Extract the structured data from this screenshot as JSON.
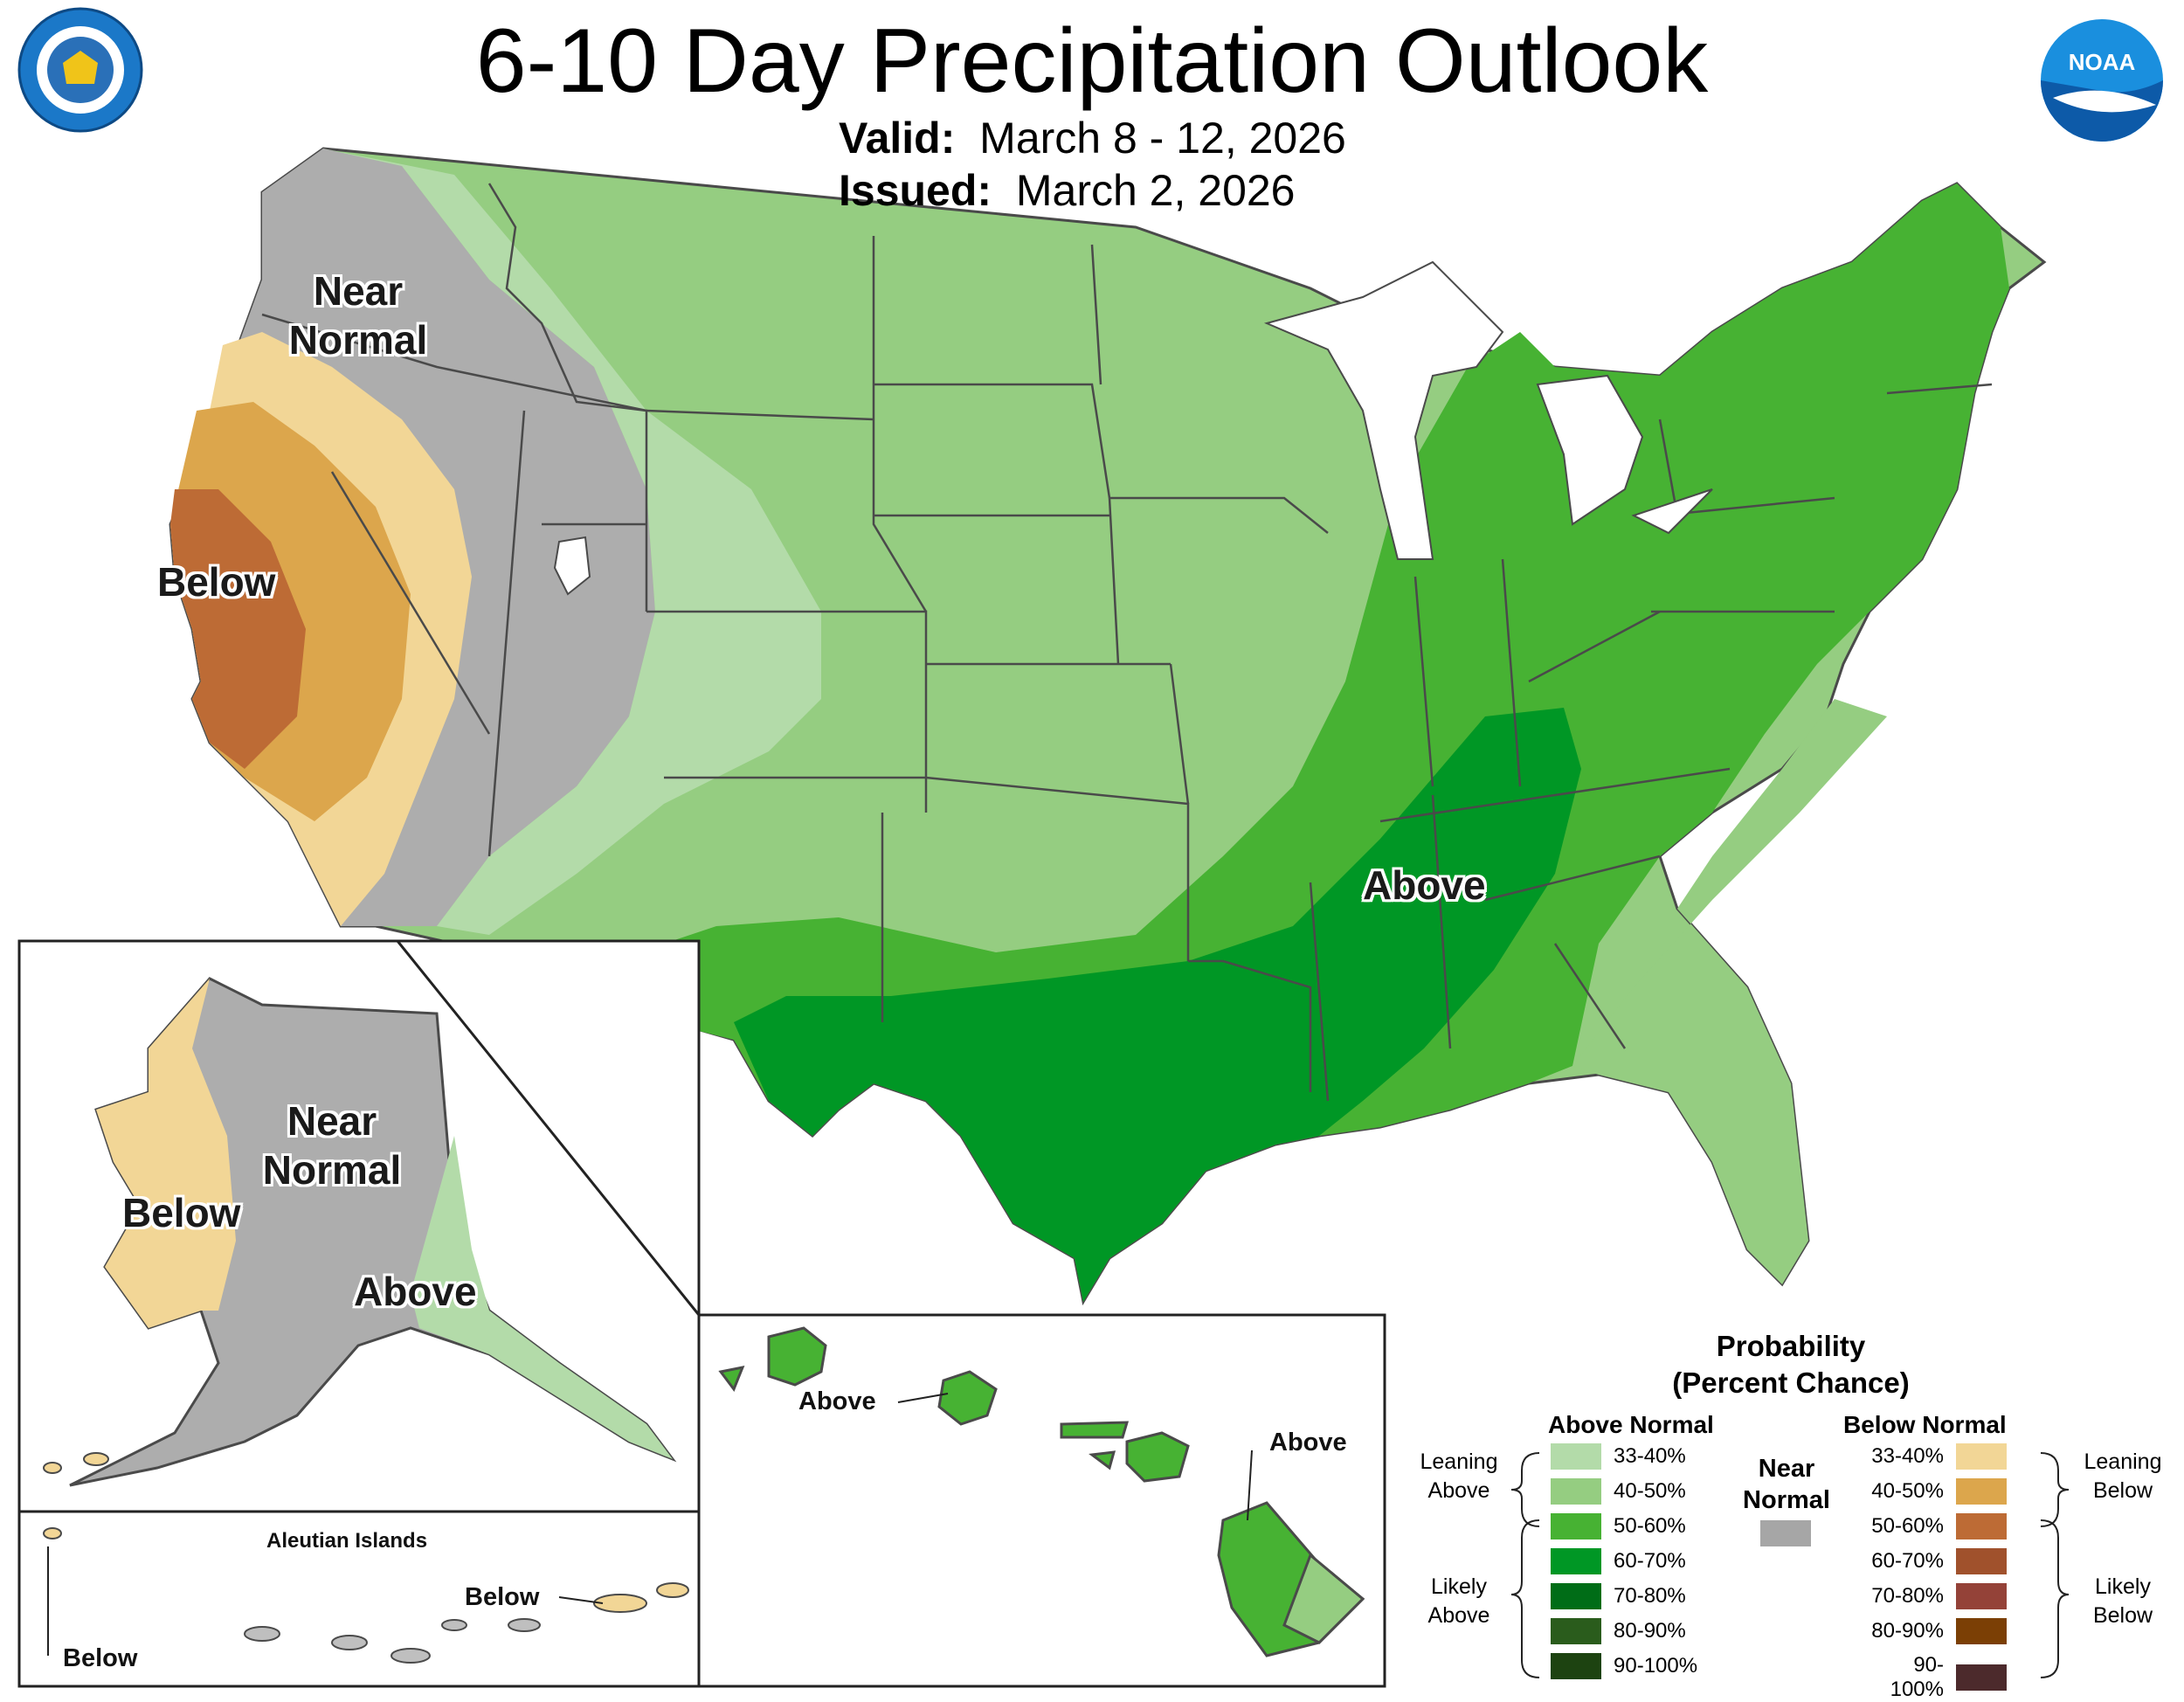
{
  "header": {
    "title": "6-10 Day Precipitation Outlook",
    "valid_label": "Valid:",
    "valid_value": "March 8 - 12, 2026",
    "issued_label": "Issued:",
    "issued_value": "March 2, 2026"
  },
  "logos": {
    "commerce_seal": "DEPARTMENT OF COMMERCE · UNITED STATES OF AMERICA",
    "noaa": "NOAA"
  },
  "map_labels": {
    "conus_near_normal": "Near Normal",
    "conus_below": "Below",
    "conus_above": "Above",
    "alaska_near_normal": "Near Normal",
    "alaska_below": "Below",
    "alaska_above": "Above",
    "aleutian_title": "Aleutian Islands",
    "aleutian_below_east": "Below",
    "aleutian_below_west": "Below",
    "hawaii_above_west": "Above",
    "hawaii_above_east": "Above"
  },
  "legend": {
    "title_line1": "Probability",
    "title_line2": "(Percent Chance)",
    "above_header": "Above Normal",
    "below_header": "Below Normal",
    "near_normal": "Near Normal",
    "leaning_above": "Leaning Above",
    "likely_above": "Likely Above",
    "leaning_below": "Leaning Below",
    "likely_below": "Likely Below",
    "above_bins": [
      {
        "label": "33-40%",
        "color": "#b3dba9"
      },
      {
        "label": "40-50%",
        "color": "#95cd81"
      },
      {
        "label": "50-60%",
        "color": "#47b233"
      },
      {
        "label": "60-70%",
        "color": "#009725"
      },
      {
        "label": "70-80%",
        "color": "#006d17"
      },
      {
        "label": "80-90%",
        "color": "#2a5c1c"
      },
      {
        "label": "90-100%",
        "color": "#1d4311"
      }
    ],
    "below_bins": [
      {
        "label": "33-40%",
        "color": "#f2d696"
      },
      {
        "label": "40-50%",
        "color": "#dca64c"
      },
      {
        "label": "50-60%",
        "color": "#bd6b35"
      },
      {
        "label": "60-70%",
        "color": "#a0512c"
      },
      {
        "label": "70-80%",
        "color": "#944238"
      },
      {
        "label": "80-90%",
        "color": "#7b3f05"
      },
      {
        "label": "90-100%",
        "color": "#4c2a2c"
      }
    ],
    "near_normal_color": "#a6a6a6"
  }
}
